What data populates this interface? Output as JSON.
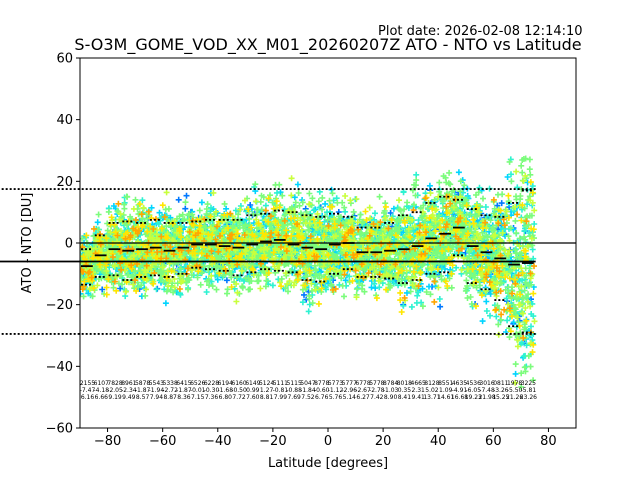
{
  "chart_data": {
    "type": "scatter",
    "plot_date": "Plot date: 2026-02-08 12:14:10",
    "title": "S-O3M_GOME_VOD_XX_M01_20260207Z ATO - NTO vs Latitude",
    "xlabel": "Latitude [degrees]",
    "ylabel": "ATO - NTO [DU]",
    "xlim": [
      -90,
      90
    ],
    "ylim": [
      -60,
      60
    ],
    "xticks": [
      -80,
      -60,
      -40,
      -20,
      0,
      20,
      40,
      60,
      80
    ],
    "yticks": [
      -60,
      -40,
      -20,
      0,
      20,
      40,
      60
    ],
    "xtick_labels": [
      "−80",
      "−60",
      "−40",
      "−20",
      "0",
      "20",
      "40",
      "60",
      "80"
    ],
    "ytick_labels": [
      "−60",
      "−40",
      "−20",
      "0",
      "20",
      "40",
      "60"
    ],
    "reference_line_y": 0,
    "bin_edges": [
      -90,
      -85,
      -80,
      -75,
      -70,
      -65,
      -60,
      -55,
      -50,
      -45,
      -40,
      -35,
      -30,
      -25,
      -20,
      -15,
      -10,
      -5,
      0,
      5,
      10,
      15,
      20,
      25,
      30,
      35,
      40,
      45,
      50,
      55,
      60,
      65,
      70,
      75
    ],
    "bin_mean": [
      -7.5,
      -4,
      -2,
      -2.5,
      -2,
      -1.5,
      -2.5,
      -1.5,
      -0.5,
      -0.5,
      -1,
      -1.5,
      -0.5,
      0.5,
      1,
      -0.5,
      -1.5,
      -2,
      -0.5,
      0,
      -3,
      -3,
      -2.5,
      -2,
      -1,
      1.5,
      3,
      5,
      -1,
      -3,
      -5,
      -7,
      -6.5,
      -6
    ],
    "bin_plus_sigma": [
      -2,
      2.5,
      6.5,
      7,
      6.5,
      7.5,
      6.5,
      6.5,
      7,
      7.5,
      7.5,
      7.5,
      9,
      9.5,
      10.5,
      10,
      9,
      8.5,
      9.5,
      8.5,
      5,
      5,
      6.5,
      9,
      10,
      13,
      15,
      14,
      11,
      9,
      8.5,
      13,
      17,
      17.5
    ],
    "bin_minus_sigma": [
      -13.5,
      -11,
      -10.5,
      -12,
      -11,
      -10.5,
      -11,
      -10,
      -8,
      -8.5,
      -9,
      -10.5,
      -9.5,
      -8.5,
      -9,
      -9.5,
      -12,
      -12.5,
      -10,
      -8.5,
      -11,
      -11,
      -11.5,
      -13,
      -12,
      -10,
      -9.5,
      -4,
      -13,
      -15,
      -18.5,
      -27,
      -29,
      -29.5
    ],
    "color_scale": [
      "#0000c8",
      "#0078ff",
      "#00d4ff",
      "#2ef2d2",
      "#7cfc7c",
      "#c8ff3c",
      "#ffe600",
      "#ffa500"
    ],
    "stats_label_y": -46,
    "stats": [
      {
        "n": "2155",
        "mean": "-7.47",
        "sd": "6.16"
      },
      {
        "n": "6107",
        "mean": "-4.18",
        "sd": "6.66"
      },
      {
        "n": "7828",
        "mean": "-2.05",
        "sd": "9.19"
      },
      {
        "n": "8961",
        "mean": "-2.34",
        "sd": "9.49"
      },
      {
        "n": "5878",
        "mean": "-1.87",
        "sd": "8.57"
      },
      {
        "n": "5543",
        "mean": "-1.94",
        "sd": "7.94"
      },
      {
        "n": "5338",
        "mean": "-2.72",
        "sd": "8.87"
      },
      {
        "n": "6415",
        "mean": "-1.87",
        "sd": "8.36"
      },
      {
        "n": "6526",
        "mean": "-0.01",
        "sd": "7.15"
      },
      {
        "n": "6228",
        "mean": "-0.30",
        "sd": "7.36"
      },
      {
        "n": "6194",
        "mean": "-1.68",
        "sd": "6.80"
      },
      {
        "n": "6160",
        "mean": "-0.50",
        "sd": "7.72"
      },
      {
        "n": "6149",
        "mean": "0.99",
        "sd": "7.60"
      },
      {
        "n": "5124",
        "mean": "1.27",
        "sd": "8.81"
      },
      {
        "n": "5111",
        "mean": "-0.81",
        "sd": "7.99"
      },
      {
        "n": "5115",
        "mean": "-0.88",
        "sd": "7.69"
      },
      {
        "n": "5047",
        "mean": "-1.84",
        "sd": "7.52"
      },
      {
        "n": "8778",
        "mean": "-0.60",
        "sd": "6.76"
      },
      {
        "n": "5773",
        "mean": "-1.12",
        "sd": "5.76"
      },
      {
        "n": "5777",
        "mean": "-2.96",
        "sd": "5.14"
      },
      {
        "n": "6778",
        "mean": "-2.67",
        "sd": "6.27"
      },
      {
        "n": "5778",
        "mean": "-2.78",
        "sd": "7.42"
      },
      {
        "n": "8784",
        "mean": "-1.03",
        "sd": "8.90"
      },
      {
        "n": "8018",
        "mean": "0.35",
        "sd": "8.41"
      },
      {
        "n": "4665",
        "mean": "2.31",
        "sd": "9.41"
      },
      {
        "n": "8128",
        "mean": "5.02",
        "sd": "13.71"
      },
      {
        "n": "8551",
        "mean": "1.09",
        "sd": "14.61"
      },
      {
        "n": "4635",
        "mean": "-4.91",
        "sd": "16.68"
      },
      {
        "n": "4536",
        "mean": "-6.05",
        "sd": "19.23"
      },
      {
        "n": "3016",
        "mean": "-7.48",
        "sd": "21.98"
      },
      {
        "n": "0811",
        "mean": "-3.26",
        "sd": "15.25"
      },
      {
        "n": "1978",
        "mean": "-5.50",
        "sd": "21.26"
      },
      {
        "n": "3225",
        "mean": "-5.81",
        "sd": "23.26"
      }
    ]
  }
}
